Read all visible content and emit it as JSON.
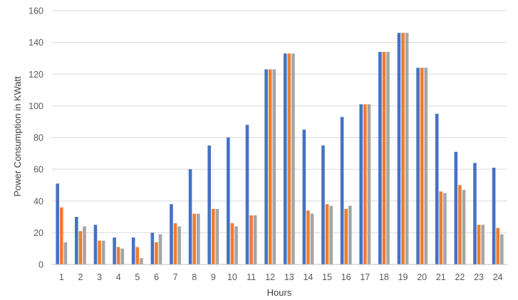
{
  "chart_data": {
    "type": "bar",
    "title": "",
    "xlabel": "Hours",
    "ylabel": "Power Consumption in KWatt",
    "ylim": [
      0,
      160
    ],
    "yticks": [
      0,
      20,
      40,
      60,
      80,
      100,
      120,
      140,
      160
    ],
    "grid": true,
    "legend": "none",
    "categories": [
      "1",
      "2",
      "3",
      "4",
      "5",
      "6",
      "7",
      "8",
      "9",
      "10",
      "11",
      "12",
      "13",
      "14",
      "15",
      "16",
      "17",
      "18",
      "19",
      "20",
      "21",
      "22",
      "23",
      "24"
    ],
    "series": [
      {
        "color": "#4472c4",
        "values": [
          51,
          30,
          25,
          17,
          17,
          20,
          38,
          60,
          75,
          80,
          88,
          123,
          133,
          85,
          75,
          93,
          101,
          134,
          146,
          124,
          95,
          71,
          64,
          61
        ]
      },
      {
        "color": "#ed7d31",
        "values": [
          36,
          21,
          15,
          11,
          11,
          14,
          26,
          32,
          35,
          26,
          31,
          123,
          133,
          34,
          38,
          35,
          101,
          134,
          146,
          124,
          46,
          50,
          25,
          23
        ]
      },
      {
        "color": "#a5a5a5",
        "values": [
          14,
          24,
          15,
          10,
          4,
          19,
          24,
          32,
          35,
          24,
          31,
          123,
          133,
          32,
          37,
          37,
          101,
          134,
          146,
          124,
          45,
          47,
          25,
          19
        ]
      }
    ],
    "gridline_color": "#d9d9d9",
    "axis_line_color": "#bfbfbf"
  }
}
